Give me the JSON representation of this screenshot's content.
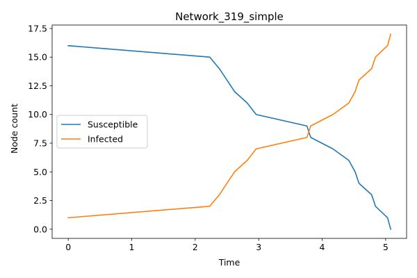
{
  "chart_data": {
    "type": "line",
    "title": "Network_319_simple",
    "xlabel": "Time",
    "ylabel": "Node count",
    "xlim": [
      -0.254,
      5.33
    ],
    "ylim": [
      -0.8,
      17.8
    ],
    "xticks": [
      0,
      1,
      2,
      3,
      4,
      5
    ],
    "xtick_labels": [
      "0",
      "1",
      "2",
      "3",
      "4",
      "5"
    ],
    "yticks": [
      0,
      2.5,
      5,
      7.5,
      10,
      12.5,
      15,
      17.5
    ],
    "ytick_labels": [
      "0.0",
      "2.5",
      "5.0",
      "7.5",
      "10.0",
      "12.5",
      "15.0",
      "17.5"
    ],
    "grid": false,
    "legend_position": "center-left",
    "series": [
      {
        "name": "Susceptible",
        "color": "#1f77b4",
        "x": [
          0,
          2.23,
          2.38,
          2.5,
          2.62,
          2.82,
          2.96,
          3.76,
          3.82,
          4.17,
          4.42,
          4.52,
          4.58,
          4.78,
          4.84,
          5.03,
          5.08
        ],
        "y": [
          16,
          15,
          14,
          13,
          12,
          11,
          10,
          9,
          8,
          7,
          6,
          5,
          4,
          3,
          2,
          1,
          0
        ]
      },
      {
        "name": "Infected",
        "color": "#ff7f0e",
        "x": [
          0,
          2.23,
          2.38,
          2.5,
          2.62,
          2.82,
          2.96,
          3.76,
          3.82,
          4.17,
          4.42,
          4.52,
          4.58,
          4.78,
          4.84,
          5.03,
          5.08
        ],
        "y": [
          1,
          2,
          3,
          4,
          5,
          6,
          7,
          8,
          9,
          10,
          11,
          12,
          13,
          14,
          15,
          16,
          17
        ]
      }
    ]
  }
}
